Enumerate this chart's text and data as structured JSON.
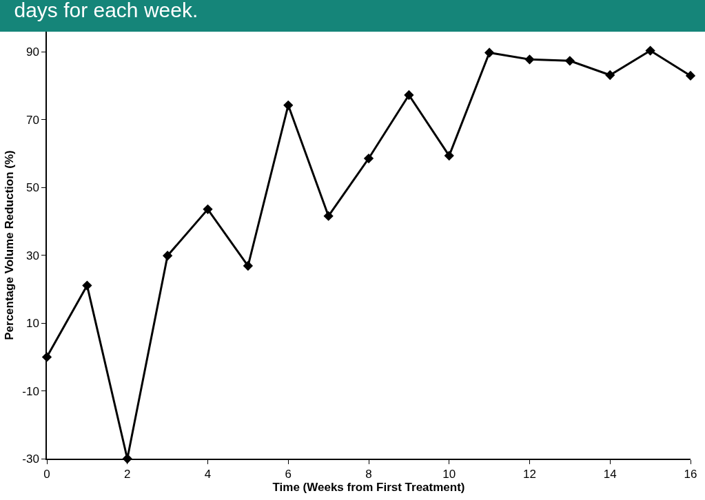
{
  "chart_data": {
    "type": "line",
    "title": "days for each week.",
    "xlabel": "Time (Weeks from First Treatment)",
    "ylabel": "Percentage Volume Reduction (%)",
    "x": [
      0,
      1,
      2,
      3,
      4,
      5,
      6,
      7,
      8,
      9,
      10,
      11,
      12,
      13,
      14,
      15,
      16
    ],
    "series": [
      {
        "color": "#000000",
        "values": [
          0,
          21.1,
          -30,
          29.9,
          43.6,
          26.9,
          74.3,
          41.6,
          58.6,
          77.3,
          59.4,
          89.8,
          87.8,
          87.4,
          83.2,
          90.4,
          83
        ]
      }
    ],
    "xlim": [
      0,
      16
    ],
    "xticks": [
      0,
      2,
      4,
      6,
      8,
      10,
      12,
      14,
      16
    ],
    "ylim": [
      -30,
      96
    ],
    "yticks": [
      -30,
      -10,
      10,
      30,
      50,
      70,
      90
    ],
    "legend": false,
    "marker": "diamond",
    "line_style": "solid"
  }
}
